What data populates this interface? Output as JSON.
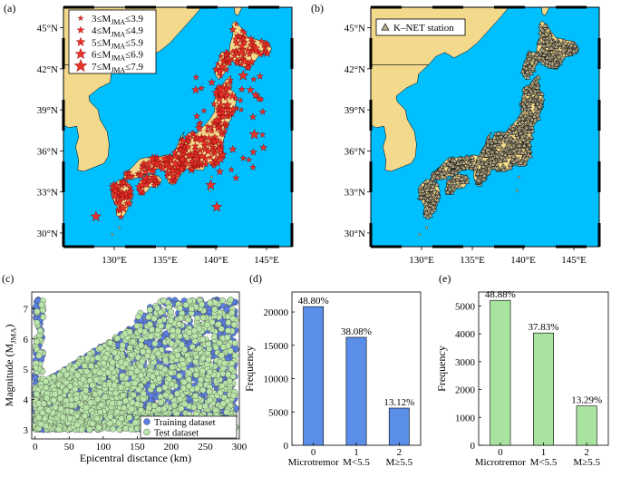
{
  "panel_labels": {
    "a": "(a)",
    "b": "(b)",
    "c": "(c)",
    "d": "(d)",
    "e": "(e)"
  },
  "colors": {
    "ocean": "#00bfff",
    "land": "#f2d98c",
    "star": "#e8332b",
    "station": "#b5a98a",
    "training": "#5b7fe0",
    "test": "#b9e5a9",
    "bar_d": "#5b8ee8",
    "bar_e": "#a8e3a0"
  },
  "chart_data": [
    {
      "type": "map",
      "panel": "a",
      "lat_ticks": [
        "30°N",
        "33°N",
        "36°N",
        "39°N",
        "42°N",
        "45°N"
      ],
      "lon_ticks": [
        "130°E",
        "135°E",
        "140°E",
        "145°E"
      ],
      "lon_range": [
        125,
        147.5
      ],
      "lat_range": [
        29,
        46.5
      ],
      "legend": {
        "position": "top-left",
        "entries": [
          {
            "pre": "3≤M",
            "sub": "JMA",
            "post": "≤3.9"
          },
          {
            "pre": "4≤M",
            "sub": "JMA",
            "post": "≤4.9"
          },
          {
            "pre": "5≤M",
            "sub": "JMA",
            "post": "≤5.9"
          },
          {
            "pre": "6≤M",
            "sub": "JMA",
            "post": "≤6.9"
          },
          {
            "pre": "7≤M",
            "sub": "JMA",
            "post": "≤7.9"
          }
        ]
      },
      "markers": "red stars (earthquake epicentres sized by magnitude)"
    },
    {
      "type": "map",
      "panel": "b",
      "lat_ticks": [
        "30°N",
        "33°N",
        "36°N",
        "39°N",
        "42°N",
        "45°N"
      ],
      "lon_ticks": [
        "130°E",
        "135°E",
        "140°E",
        "145°E"
      ],
      "lon_range": [
        125,
        147.5
      ],
      "lat_range": [
        29,
        46.5
      ],
      "legend": {
        "position": "top-left",
        "entries": [
          "K–NET station"
        ]
      },
      "markers": "triangles (K-NET station locations)"
    },
    {
      "type": "scatter",
      "panel": "c",
      "xlabel": "Epicentral disctance (km)",
      "ylabel": {
        "pre": "Magnitude (M",
        "sub": "JMA",
        "post": ")"
      },
      "xlim": [
        -5,
        300
      ],
      "ylim": [
        2.7,
        7.55
      ],
      "xticks": [
        0,
        50,
        100,
        150,
        200,
        250,
        300
      ],
      "yticks": [
        3,
        4,
        5,
        6,
        7
      ],
      "legend_position": "bottom-right",
      "series": [
        {
          "name": "Training dataset",
          "description": "dense cloud, distance 0–300 km, magnitude 3.0–7.3; upper envelope rising with distance"
        },
        {
          "name": "Test dataset",
          "description": "overlaid on training, similar distribution"
        }
      ]
    },
    {
      "type": "bar",
      "panel": "d",
      "ylabel": "Frequency",
      "ylim": [
        0,
        23000
      ],
      "yticks": [
        0,
        5000,
        10000,
        15000,
        20000
      ],
      "categories": [
        {
          "index": "0",
          "label": "Microtremor"
        },
        {
          "index": "1",
          "label": "M<5.5"
        },
        {
          "index": "2",
          "label": "M≥5.5"
        }
      ],
      "values": [
        20800,
        16200,
        5580
      ],
      "data_labels": [
        "48.80%",
        "38.08%",
        "13.12%"
      ]
    },
    {
      "type": "bar",
      "panel": "e",
      "ylabel": "Frequency",
      "ylim": [
        0,
        5500
      ],
      "yticks": [
        0,
        1000,
        2000,
        3000,
        4000,
        5000
      ],
      "categories": [
        {
          "index": "0",
          "label": "Microtremor"
        },
        {
          "index": "1",
          "label": "M<5.5"
        },
        {
          "index": "2",
          "label": "M≥5.5"
        }
      ],
      "values": [
        5200,
        4030,
        1410
      ],
      "data_labels": [
        "48.88%",
        "37.83%",
        "13.29%"
      ]
    }
  ]
}
